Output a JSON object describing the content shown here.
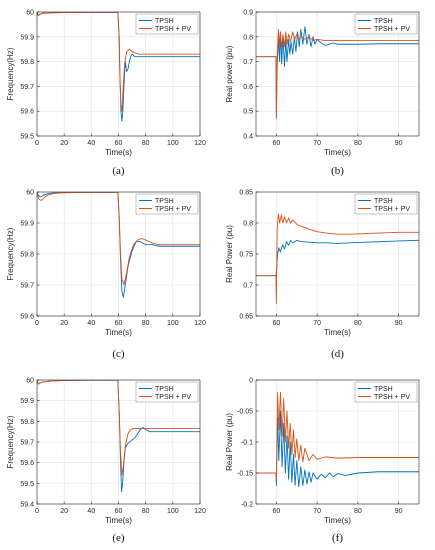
{
  "colors": {
    "tpsh": "#0072BD",
    "tpsh_pv": "#D95319",
    "grid": "#E3E3E3",
    "axis": "#262626"
  },
  "chart_data": [
    {
      "id": "a",
      "panel_label": "(a)",
      "type": "line",
      "xlabel": "Time(s)",
      "ylabel": "Frequency(Hz)",
      "xlim": [
        0,
        120
      ],
      "ylim": [
        59.5,
        60
      ],
      "xticks": [
        0,
        20,
        40,
        60,
        80,
        100,
        120
      ],
      "yticks": [
        59.5,
        59.6,
        59.7,
        59.8,
        59.9,
        60
      ],
      "ytick_labels": [
        "59.5",
        "59.6",
        "59.7",
        "59.8",
        "59.9",
        "60"
      ],
      "legend": "top-right",
      "grid": true,
      "series": [
        {
          "name": "TPSH",
          "color_key": "tpsh",
          "x": [
            0,
            0.5,
            1,
            2,
            4,
            10,
            20,
            40,
            59.5,
            60.5,
            61,
            61.8,
            62.5,
            63.2,
            64,
            65,
            66,
            67,
            68,
            69,
            70,
            72,
            75,
            80,
            90,
            100,
            120
          ],
          "y": [
            60,
            59.99,
            59.985,
            59.99,
            59.995,
            59.997,
            59.998,
            59.999,
            59.999,
            59.9,
            59.75,
            59.6,
            59.56,
            59.6,
            59.7,
            59.8,
            59.76,
            59.77,
            59.8,
            59.82,
            59.83,
            59.82,
            59.82,
            59.82,
            59.82,
            59.82,
            59.82
          ]
        },
        {
          "name": "TPSH + PV",
          "color_key": "tpsh_pv",
          "x": [
            0,
            0.5,
            1,
            2,
            4,
            10,
            20,
            40,
            59.5,
            60.5,
            61,
            61.8,
            62.5,
            63.5,
            64.5,
            66,
            68,
            70,
            72,
            75,
            80,
            90,
            100,
            120
          ],
          "y": [
            60,
            59.99,
            59.985,
            59.99,
            59.995,
            59.997,
            59.998,
            59.999,
            59.999,
            59.9,
            59.75,
            59.63,
            59.6,
            59.7,
            59.79,
            59.84,
            59.85,
            59.84,
            59.835,
            59.83,
            59.83,
            59.83,
            59.83,
            59.83
          ]
        }
      ]
    },
    {
      "id": "b",
      "panel_label": "(b)",
      "type": "line",
      "xlabel": "Time(s)",
      "ylabel": "Real power (pu)",
      "xlim": [
        55,
        95
      ],
      "ylim": [
        0.4,
        0.9
      ],
      "xticks": [
        60,
        70,
        80,
        90
      ],
      "yticks": [
        0.4,
        0.5,
        0.6,
        0.7,
        0.8,
        0.9
      ],
      "ytick_labels": [
        "0.4",
        "0.5",
        "0.6",
        "0.7",
        "0.8",
        "0.9"
      ],
      "legend": "top-right",
      "grid": true,
      "series": [
        {
          "name": "TPSH",
          "color_key": "tpsh",
          "x": [
            55,
            59.9,
            60,
            60.2,
            60.5,
            60.8,
            61,
            61.3,
            61.6,
            62,
            62.3,
            62.6,
            63,
            63.3,
            63.6,
            64,
            64.4,
            64.8,
            65.2,
            65.6,
            66,
            66.5,
            67,
            67.5,
            68,
            68.5,
            69,
            69.5,
            70,
            71,
            72,
            73,
            74,
            75,
            77,
            80,
            85,
            90,
            95
          ],
          "y": [
            0.72,
            0.72,
            0.48,
            0.68,
            0.8,
            0.7,
            0.82,
            0.69,
            0.8,
            0.68,
            0.79,
            0.7,
            0.79,
            0.73,
            0.78,
            0.73,
            0.8,
            0.74,
            0.82,
            0.76,
            0.83,
            0.77,
            0.84,
            0.77,
            0.81,
            0.76,
            0.8,
            0.77,
            0.79,
            0.775,
            0.765,
            0.77,
            0.775,
            0.77,
            0.77,
            0.77,
            0.772,
            0.772,
            0.772
          ]
        },
        {
          "name": "TPSH + PV",
          "color_key": "tpsh_pv",
          "x": [
            55,
            59.9,
            60,
            60.2,
            60.5,
            60.8,
            61,
            61.3,
            61.6,
            62,
            62.3,
            62.6,
            63,
            63.5,
            64,
            64.5,
            65,
            65.5,
            66,
            67,
            68,
            69,
            70,
            72,
            75,
            80,
            85,
            90,
            95
          ],
          "y": [
            0.72,
            0.72,
            0.47,
            0.72,
            0.83,
            0.76,
            0.82,
            0.75,
            0.81,
            0.76,
            0.82,
            0.77,
            0.81,
            0.78,
            0.82,
            0.79,
            0.81,
            0.79,
            0.8,
            0.79,
            0.8,
            0.785,
            0.79,
            0.785,
            0.785,
            0.785,
            0.785,
            0.785,
            0.785
          ]
        }
      ]
    },
    {
      "id": "c",
      "panel_label": "(c)",
      "type": "line",
      "xlabel": "Time(s)",
      "ylabel": "Frequency(Hz)",
      "xlim": [
        0,
        120
      ],
      "ylim": [
        59.6,
        60
      ],
      "xticks": [
        0,
        20,
        40,
        60,
        80,
        100,
        120
      ],
      "yticks": [
        59.6,
        59.7,
        59.8,
        59.9,
        60
      ],
      "ytick_labels": [
        "59.6",
        "59.7",
        "59.8",
        "59.9",
        "60"
      ],
      "legend": "top-right",
      "grid": true,
      "series": [
        {
          "name": "TPSH",
          "color_key": "tpsh",
          "x": [
            0,
            0.5,
            1,
            2,
            3,
            5,
            8,
            12,
            20,
            40,
            59.5,
            60.5,
            61.5,
            62.5,
            63.5,
            65,
            67,
            70,
            73,
            76,
            80,
            85,
            90,
            100,
            120
          ],
          "y": [
            60,
            59.995,
            59.99,
            59.985,
            59.985,
            59.99,
            59.995,
            59.997,
            59.998,
            59.999,
            59.999,
            59.92,
            59.78,
            59.68,
            59.66,
            59.7,
            59.76,
            59.81,
            59.84,
            59.84,
            59.83,
            59.83,
            59.825,
            59.825,
            59.825
          ]
        },
        {
          "name": "TPSH + PV",
          "color_key": "tpsh_pv",
          "x": [
            0,
            0.5,
            1,
            2,
            3,
            4,
            6,
            8,
            12,
            20,
            40,
            59.5,
            60.5,
            61.5,
            62.5,
            64,
            66,
            68,
            71,
            74,
            77,
            80,
            85,
            90,
            100,
            120
          ],
          "y": [
            60,
            59.99,
            59.98,
            59.975,
            59.973,
            59.975,
            59.985,
            59.99,
            59.995,
            59.998,
            59.999,
            59.999,
            59.92,
            59.8,
            59.72,
            59.7,
            59.74,
            59.79,
            59.83,
            59.845,
            59.85,
            59.845,
            59.835,
            59.83,
            59.83,
            59.83
          ]
        }
      ]
    },
    {
      "id": "d",
      "panel_label": "(d)",
      "type": "line",
      "xlabel": "Time(s)",
      "ylabel": "Real Power (pu)",
      "xlim": [
        55,
        95
      ],
      "ylim": [
        0.65,
        0.85
      ],
      "xticks": [
        60,
        70,
        80,
        90
      ],
      "yticks": [
        0.65,
        0.7,
        0.75,
        0.8,
        0.85
      ],
      "ytick_labels": [
        "0.65",
        "0.7",
        "0.75",
        "0.8",
        "0.85"
      ],
      "legend": "top-right",
      "grid": true,
      "series": [
        {
          "name": "TPSH",
          "color_key": "tpsh",
          "x": [
            55,
            59.9,
            60,
            60.3,
            60.6,
            61,
            61.5,
            62,
            62.5,
            63,
            63.5,
            64,
            65,
            66,
            68,
            70,
            72,
            75,
            78,
            82,
            86,
            90,
            95
          ],
          "y": [
            0.715,
            0.715,
            0.72,
            0.75,
            0.76,
            0.753,
            0.765,
            0.758,
            0.77,
            0.764,
            0.772,
            0.768,
            0.772,
            0.77,
            0.769,
            0.768,
            0.768,
            0.767,
            0.768,
            0.769,
            0.77,
            0.771,
            0.772
          ]
        },
        {
          "name": "TPSH + PV",
          "color_key": "tpsh_pv",
          "x": [
            55,
            59.9,
            60,
            60.2,
            60.5,
            60.8,
            61.2,
            61.6,
            62,
            62.5,
            63,
            63.5,
            64,
            65,
            66,
            68,
            70,
            72,
            75,
            78,
            82,
            86,
            90,
            95
          ],
          "y": [
            0.715,
            0.715,
            0.67,
            0.79,
            0.815,
            0.8,
            0.813,
            0.8,
            0.81,
            0.8,
            0.808,
            0.8,
            0.805,
            0.798,
            0.795,
            0.79,
            0.786,
            0.784,
            0.782,
            0.782,
            0.783,
            0.784,
            0.785,
            0.785
          ]
        }
      ]
    },
    {
      "id": "e",
      "panel_label": "(e)",
      "type": "line",
      "xlabel": "Time(s)",
      "ylabel": "Frequency(Hz)",
      "xlim": [
        0,
        120
      ],
      "ylim": [
        59.4,
        60
      ],
      "xticks": [
        0,
        20,
        40,
        60,
        80,
        100,
        120
      ],
      "yticks": [
        59.4,
        59.5,
        59.6,
        59.7,
        59.8,
        59.9,
        60
      ],
      "ytick_labels": [
        "59.4",
        "59.5",
        "59.6",
        "59.7",
        "59.8",
        "59.9",
        "60"
      ],
      "legend": "top-right",
      "grid": true,
      "series": [
        {
          "name": "TPSH",
          "color_key": "tpsh",
          "x": [
            0,
            0.5,
            1,
            2,
            4,
            10,
            20,
            40,
            59.5,
            60.5,
            61.5,
            62.3,
            63,
            64,
            65,
            66.5,
            68,
            70,
            72,
            74,
            76,
            78,
            80,
            83,
            86,
            90,
            100,
            120
          ],
          "y": [
            60,
            59.99,
            59.98,
            59.985,
            59.99,
            59.995,
            59.998,
            59.999,
            59.999,
            59.85,
            59.6,
            59.46,
            59.5,
            59.6,
            59.67,
            59.69,
            59.7,
            59.71,
            59.72,
            59.74,
            59.76,
            59.77,
            59.76,
            59.75,
            59.75,
            59.75,
            59.75,
            59.75
          ]
        },
        {
          "name": "TPSH + PV",
          "color_key": "tpsh_pv",
          "x": [
            0,
            0.5,
            1,
            2,
            4,
            10,
            20,
            40,
            59.5,
            60.5,
            61.5,
            62.5,
            63.5,
            65,
            67,
            69,
            71,
            73,
            75,
            80,
            90,
            100,
            120
          ],
          "y": [
            60,
            59.99,
            59.98,
            59.985,
            59.99,
            59.995,
            59.998,
            59.999,
            59.999,
            59.85,
            59.65,
            59.54,
            59.58,
            59.68,
            59.74,
            59.76,
            59.765,
            59.765,
            59.765,
            59.765,
            59.765,
            59.765,
            59.765
          ]
        }
      ]
    },
    {
      "id": "f",
      "panel_label": "(f)",
      "type": "line",
      "xlabel": "Time(s)",
      "ylabel": "Real Power (pu)",
      "xlim": [
        55,
        95
      ],
      "ylim": [
        -0.2,
        0
      ],
      "xticks": [
        60,
        70,
        80,
        90
      ],
      "yticks": [
        -0.2,
        -0.15,
        -0.1,
        -0.05,
        0
      ],
      "ytick_labels": [
        "-0.2",
        "-0.15",
        "-0.1",
        "-0.05",
        "0"
      ],
      "legend": "top-right",
      "grid": true,
      "series": [
        {
          "name": "TPSH",
          "color_key": "tpsh",
          "x": [
            55,
            59.9,
            60,
            60.3,
            60.6,
            61,
            61.4,
            61.8,
            62.2,
            62.6,
            63,
            63.4,
            63.8,
            64.2,
            64.6,
            65,
            65.5,
            66,
            66.5,
            67,
            67.5,
            68,
            68.5,
            69,
            70,
            71,
            72,
            73,
            74,
            75,
            77,
            80,
            85,
            90,
            95
          ],
          "y": [
            -0.15,
            -0.15,
            -0.17,
            -0.06,
            -0.13,
            -0.05,
            -0.14,
            -0.07,
            -0.15,
            -0.09,
            -0.16,
            -0.1,
            -0.165,
            -0.12,
            -0.17,
            -0.13,
            -0.172,
            -0.14,
            -0.17,
            -0.145,
            -0.168,
            -0.148,
            -0.165,
            -0.15,
            -0.16,
            -0.152,
            -0.158,
            -0.15,
            -0.156,
            -0.151,
            -0.154,
            -0.15,
            -0.148,
            -0.148,
            -0.148
          ]
        },
        {
          "name": "TPSH + PV",
          "color_key": "tpsh_pv",
          "x": [
            55,
            59.9,
            60,
            60.3,
            60.6,
            61,
            61.4,
            61.8,
            62.2,
            62.6,
            63,
            63.4,
            63.8,
            64.2,
            64.6,
            65,
            65.5,
            66,
            66.5,
            67,
            68,
            69,
            70,
            72,
            75,
            80,
            85,
            90,
            95
          ],
          "y": [
            -0.15,
            -0.15,
            -0.16,
            -0.02,
            -0.08,
            -0.02,
            -0.09,
            -0.03,
            -0.1,
            -0.05,
            -0.11,
            -0.07,
            -0.12,
            -0.08,
            -0.125,
            -0.095,
            -0.13,
            -0.105,
            -0.132,
            -0.11,
            -0.13,
            -0.12,
            -0.128,
            -0.124,
            -0.126,
            -0.125,
            -0.125,
            -0.125,
            -0.125
          ]
        }
      ]
    }
  ]
}
